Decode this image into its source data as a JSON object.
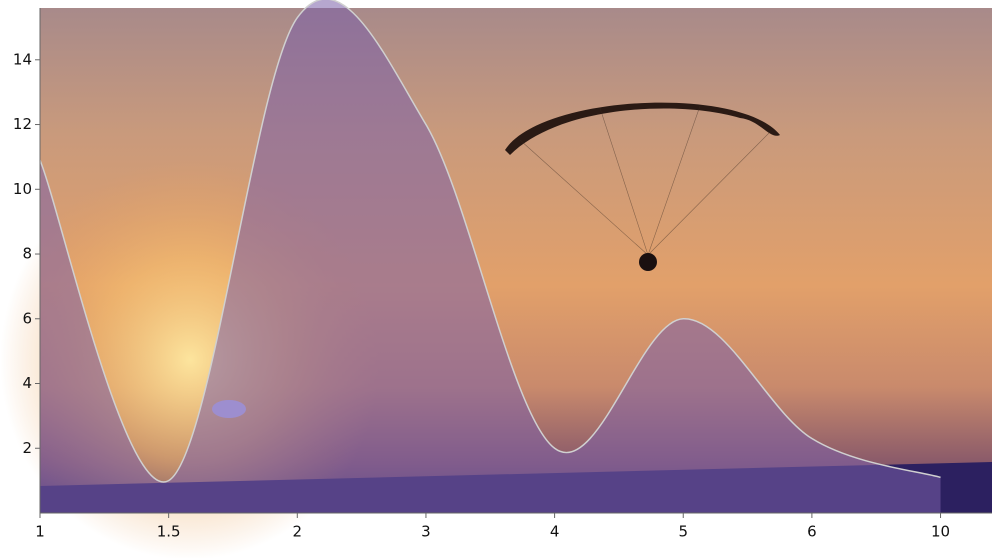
{
  "chart_data": {
    "type": "area",
    "categories": [
      "1",
      "1.5",
      "2",
      "3",
      "4",
      "5",
      "6",
      "10"
    ],
    "values": [
      10.9,
      1.0,
      15.3,
      12.0,
      2.0,
      6.0,
      2.3,
      1.1
    ],
    "color": "#7a5fa8",
    "line_color": "#d0d0d0",
    "ylim": [
      0,
      15.6
    ],
    "yticks": [
      2,
      4,
      6,
      8,
      10,
      12,
      14
    ]
  }
}
